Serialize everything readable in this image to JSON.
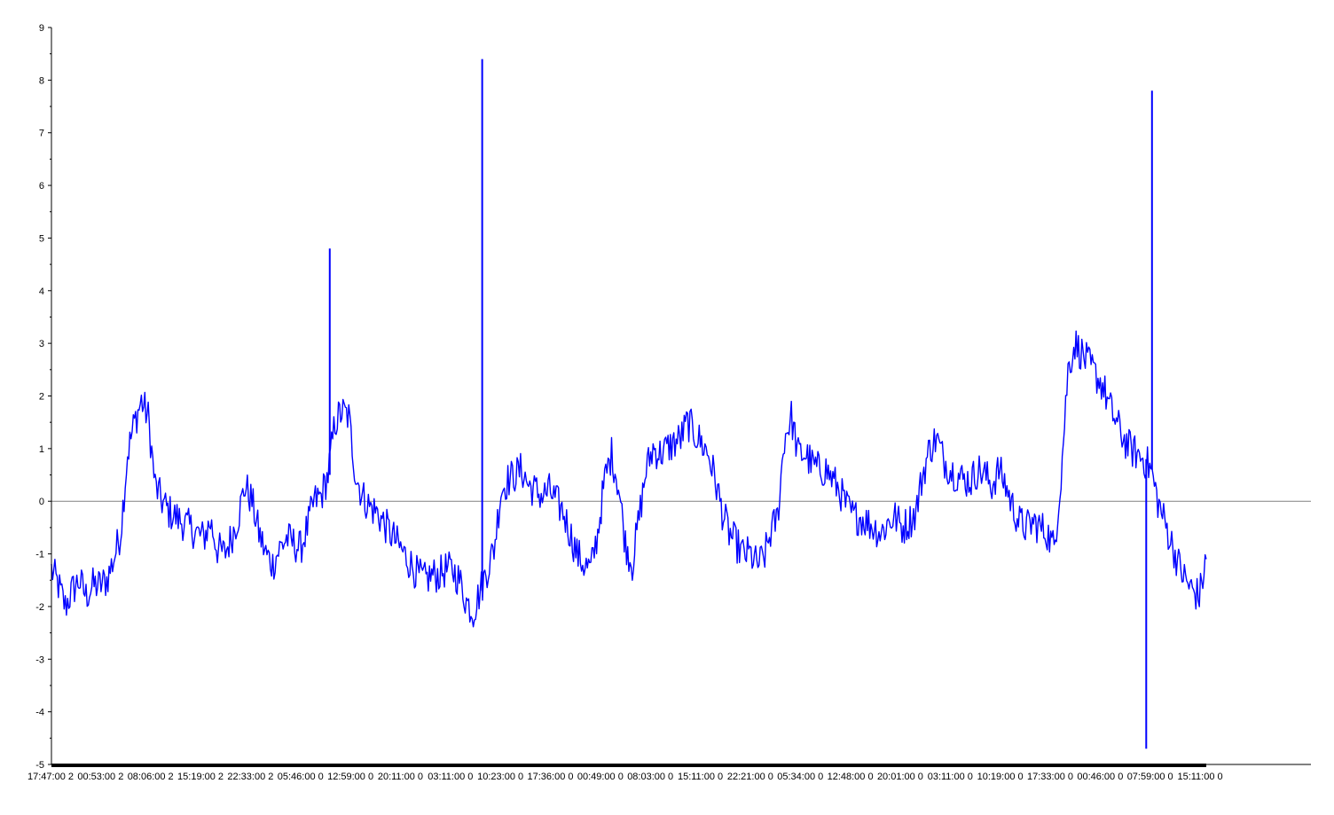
{
  "chart_data": {
    "type": "line",
    "title": "",
    "xlabel": "",
    "ylabel": "",
    "ylim": [
      -5,
      9
    ],
    "y_ticks": [
      "9",
      "8",
      "7",
      "6",
      "5",
      "4",
      "3",
      "2",
      "1",
      "0",
      "-1",
      "-2",
      "-3",
      "-4",
      "-5"
    ],
    "x_tick_labels": [
      "17:47:00 2",
      "00:53:00 2",
      "08:06:00 2",
      "15:19:00 2",
      "22:33:00 2",
      "05:46:00 0",
      "12:59:00 0",
      "20:11:00 0",
      "03:11:00 0",
      "10:23:00 0",
      "17:36:00 0",
      "00:49:00 0",
      "08:03:00 0",
      "15:11:00 0",
      "22:21:00 0",
      "05:34:00 0",
      "12:48:00 0",
      "20:01:00 0",
      "03:11:00 0",
      "10:19:00 0",
      "17:33:00 0",
      "00:46:00 0",
      "07:59:00 0",
      "15:11:00 0"
    ],
    "grid": false,
    "zero_line": true,
    "colors": {
      "series": "#0000ff",
      "axis": "#000000",
      "zero_line": "#808080"
    },
    "series": [
      {
        "values": [
          -1.3,
          -1.6,
          -2.0,
          -1.7,
          -1.5,
          -1.8,
          -1.6,
          -1.6,
          -1.5,
          -1.1,
          -0.6,
          0.9,
          1.5,
          1.9,
          1.6,
          0.3,
          0.0,
          -0.2,
          -0.3,
          -0.4,
          -0.5,
          -0.6,
          -0.7,
          -0.4,
          -0.9,
          -1.0,
          -0.7,
          -0.3,
          0.3,
          0.0,
          -0.6,
          -1.0,
          -1.2,
          -0.9,
          -0.7,
          -0.8,
          -0.9,
          -0.5,
          0.0,
          0.1,
          0.5,
          1.5,
          1.7,
          1.6,
          0.5,
          0.1,
          -0.1,
          -0.2,
          -0.4,
          -0.6,
          -0.8,
          -1.0,
          -1.2,
          -1.4,
          -1.5,
          -1.4,
          -1.4,
          -1.3,
          -1.3,
          -1.5,
          -1.9,
          -2.1,
          -1.7,
          -1.3,
          -0.9,
          0.2,
          0.4,
          0.5,
          0.6,
          0.3,
          0.2,
          0.1,
          0.2,
          0.0,
          -0.2,
          -0.6,
          -1.0,
          -1.2,
          -1.3,
          -0.6,
          0.4,
          0.9,
          0.3,
          -0.8,
          -1.2,
          -0.3,
          0.6,
          1.0,
          0.9,
          1.0,
          1.1,
          1.2,
          1.5,
          1.3,
          1.1,
          0.9,
          0.4,
          -0.2,
          -0.6,
          -0.8,
          -1.0,
          -1.0,
          -1.2,
          -1.1,
          -0.6,
          -0.3,
          1.2,
          1.6,
          0.9,
          0.9,
          0.7,
          0.6,
          0.6,
          0.4,
          0.2,
          -0.1,
          -0.3,
          -0.3,
          -0.4,
          -0.5,
          -0.6,
          -0.4,
          -0.3,
          -0.5,
          -0.4,
          -0.2,
          0.5,
          1.0,
          1.2,
          0.8,
          0.6,
          0.5,
          0.4,
          0.4,
          0.6,
          0.5,
          0.3,
          0.6,
          0.3,
          -0.1,
          -0.4,
          -0.5,
          -0.4,
          -0.5,
          -0.6,
          -0.9,
          0.5,
          2.5,
          3.0,
          2.8,
          2.6,
          2.4,
          2.2,
          1.8,
          1.5,
          1.2,
          1.0,
          0.9,
          0.8,
          0.6,
          0.0,
          -0.4,
          -0.8,
          -1.2,
          -1.5,
          -1.7,
          -1.8,
          -1.1
        ]
      }
    ],
    "spikes": [
      {
        "x_frac": 0.241,
        "y": 4.8
      },
      {
        "x_frac": 0.373,
        "y": 8.4
      },
      {
        "x_frac": 0.948,
        "y": -4.7
      },
      {
        "x_frac": 0.953,
        "y": 7.8
      }
    ]
  }
}
